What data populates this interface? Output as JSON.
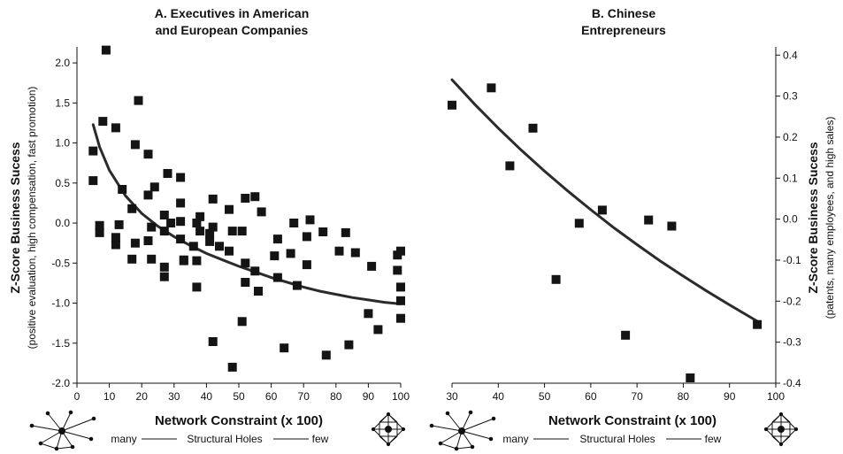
{
  "chart_data": [
    {
      "type": "scatter",
      "title_lines": [
        "A. Executives in American",
        "and European Companies"
      ],
      "xlabel": "Network Constraint (x 100)",
      "ylabel": "Z-Score Business Sucess",
      "ylabel_sub": "(positive evaluation, high compensation, fast promotion)",
      "caption": {
        "left": "many",
        "middle": "Structural Holes",
        "right": "few"
      },
      "xlim": [
        0,
        100
      ],
      "ylim": [
        -2.0,
        2.2
      ],
      "x_ticks": [
        0,
        10,
        20,
        30,
        40,
        50,
        60,
        70,
        80,
        90,
        100
      ],
      "x_tick_labels": [
        "0",
        "10",
        "20",
        "30",
        "40",
        "50",
        "60",
        "70",
        "80",
        "90",
        "100"
      ],
      "y_ticks": [
        -2.0,
        -1.5,
        -1.0,
        -0.5,
        0.0,
        0.5,
        1.0,
        1.5,
        2.0
      ],
      "y_tick_labels": [
        "-2.0",
        "-1.5",
        "-1.0",
        "-0.5",
        "0.0",
        "0.5",
        "1.0",
        "1.5",
        "2.0"
      ],
      "y_axis_side": "left",
      "grid": false,
      "points": [
        [
          5,
          0.9
        ],
        [
          5,
          0.53
        ],
        [
          7,
          -0.03
        ],
        [
          7,
          -0.12
        ],
        [
          8,
          1.27
        ],
        [
          9,
          2.16
        ],
        [
          12,
          1.19
        ],
        [
          12,
          -0.18
        ],
        [
          12,
          -0.27
        ],
        [
          13,
          -0.02
        ],
        [
          14,
          0.42
        ],
        [
          17,
          0.18
        ],
        [
          17,
          -0.45
        ],
        [
          18,
          0.98
        ],
        [
          18,
          -0.25
        ],
        [
          19,
          1.53
        ],
        [
          22,
          0.86
        ],
        [
          22,
          0.35
        ],
        [
          22,
          -0.22
        ],
        [
          23,
          -0.05
        ],
        [
          23,
          -0.45
        ],
        [
          24,
          0.45
        ],
        [
          27,
          0.1
        ],
        [
          27,
          -0.1
        ],
        [
          27,
          -0.55
        ],
        [
          27,
          -0.67
        ],
        [
          28,
          0.62
        ],
        [
          29,
          0.0
        ],
        [
          32,
          0.57
        ],
        [
          32,
          0.25
        ],
        [
          32,
          0.02
        ],
        [
          32,
          -0.2
        ],
        [
          33,
          -0.46
        ],
        [
          33,
          -0.47
        ],
        [
          36,
          -0.29
        ],
        [
          37,
          0.0
        ],
        [
          37,
          -0.47
        ],
        [
          37,
          -0.8
        ],
        [
          38,
          0.08
        ],
        [
          38,
          -0.1
        ],
        [
          41,
          -0.23
        ],
        [
          41,
          -0.13
        ],
        [
          42,
          -0.05
        ],
        [
          42,
          0.3
        ],
        [
          42,
          -1.48
        ],
        [
          44,
          -0.29
        ],
        [
          47,
          -0.35
        ],
        [
          47,
          0.17
        ],
        [
          48,
          -0.1
        ],
        [
          48,
          -1.8
        ],
        [
          51,
          -1.23
        ],
        [
          51,
          -0.1
        ],
        [
          52,
          -0.5
        ],
        [
          52,
          0.31
        ],
        [
          52,
          -0.74
        ],
        [
          55,
          0.33
        ],
        [
          55,
          -0.6
        ],
        [
          56,
          -0.85
        ],
        [
          57,
          0.14
        ],
        [
          61,
          -0.41
        ],
        [
          62,
          -0.68
        ],
        [
          62,
          -0.2
        ],
        [
          64,
          -1.56
        ],
        [
          66,
          -0.38
        ],
        [
          67,
          0.0
        ],
        [
          68,
          -0.78
        ],
        [
          71,
          -0.17
        ],
        [
          71,
          -0.52
        ],
        [
          72,
          0.04
        ],
        [
          76,
          -0.11
        ],
        [
          77,
          -1.65
        ],
        [
          81,
          -0.35
        ],
        [
          83,
          -0.12
        ],
        [
          84,
          -1.52
        ],
        [
          86,
          -0.37
        ],
        [
          90,
          -1.13
        ],
        [
          91,
          -0.54
        ],
        [
          93,
          -1.33
        ],
        [
          99,
          -0.59
        ],
        [
          99,
          -0.4
        ],
        [
          100,
          -0.35
        ],
        [
          100,
          -0.8
        ],
        [
          100,
          -0.97
        ],
        [
          100,
          -1.19
        ]
      ],
      "fit_curve": [
        [
          5,
          1.23
        ],
        [
          7,
          0.95
        ],
        [
          10,
          0.66
        ],
        [
          15,
          0.34
        ],
        [
          20,
          0.12
        ],
        [
          25,
          -0.04
        ],
        [
          30,
          -0.17
        ],
        [
          35,
          -0.28
        ],
        [
          40,
          -0.38
        ],
        [
          45,
          -0.46
        ],
        [
          50,
          -0.54
        ],
        [
          55,
          -0.61
        ],
        [
          60,
          -0.68
        ],
        [
          65,
          -0.74
        ],
        [
          70,
          -0.8
        ],
        [
          75,
          -0.85
        ],
        [
          80,
          -0.89
        ],
        [
          85,
          -0.93
        ],
        [
          90,
          -0.96
        ],
        [
          95,
          -0.99
        ],
        [
          100,
          -1.01
        ]
      ]
    },
    {
      "type": "scatter",
      "title_lines": [
        "B. Chinese",
        "Entrepreneurs"
      ],
      "xlabel": "Network Constraint (x 100)",
      "ylabel": "Z-Score Business Sucess",
      "ylabel_sub": "(patents, many employees, and high sales)",
      "caption": {
        "left": "many",
        "middle": "Structural Holes",
        "right": "few"
      },
      "xlim": [
        30,
        100
      ],
      "ylim": [
        -0.4,
        0.42
      ],
      "x_ticks": [
        30,
        40,
        50,
        60,
        70,
        80,
        90,
        100
      ],
      "x_tick_labels": [
        "30",
        "40",
        "50",
        "60",
        "70",
        "80",
        "90",
        "100"
      ],
      "y_ticks": [
        -0.4,
        -0.3,
        -0.2,
        -0.1,
        0.0,
        0.1,
        0.2,
        0.3,
        0.4
      ],
      "y_tick_labels": [
        "-0.4",
        "-0.3",
        "-0.2",
        "-0.1",
        "0.0",
        "0.1",
        "0.2",
        "0.3",
        "0.4"
      ],
      "y_axis_side": "right",
      "grid": false,
      "points": [
        [
          30,
          0.278
        ],
        [
          38.5,
          0.32
        ],
        [
          42.5,
          0.13
        ],
        [
          47.5,
          0.222
        ],
        [
          52.5,
          -0.147
        ],
        [
          57.5,
          -0.01
        ],
        [
          62.5,
          0.022
        ],
        [
          67.5,
          -0.283
        ],
        [
          72.5,
          -0.002
        ],
        [
          77.5,
          -0.017
        ],
        [
          81.5,
          -0.387
        ],
        [
          96,
          -0.257
        ]
      ],
      "fit_curve": [
        [
          30,
          0.34
        ],
        [
          35,
          0.279
        ],
        [
          40,
          0.222
        ],
        [
          45,
          0.168
        ],
        [
          50,
          0.117
        ],
        [
          55,
          0.069
        ],
        [
          60,
          0.023
        ],
        [
          65,
          -0.021
        ],
        [
          70,
          -0.062
        ],
        [
          75,
          -0.102
        ],
        [
          80,
          -0.139
        ],
        [
          85,
          -0.175
        ],
        [
          90,
          -0.209
        ],
        [
          96,
          -0.249
        ]
      ]
    }
  ]
}
